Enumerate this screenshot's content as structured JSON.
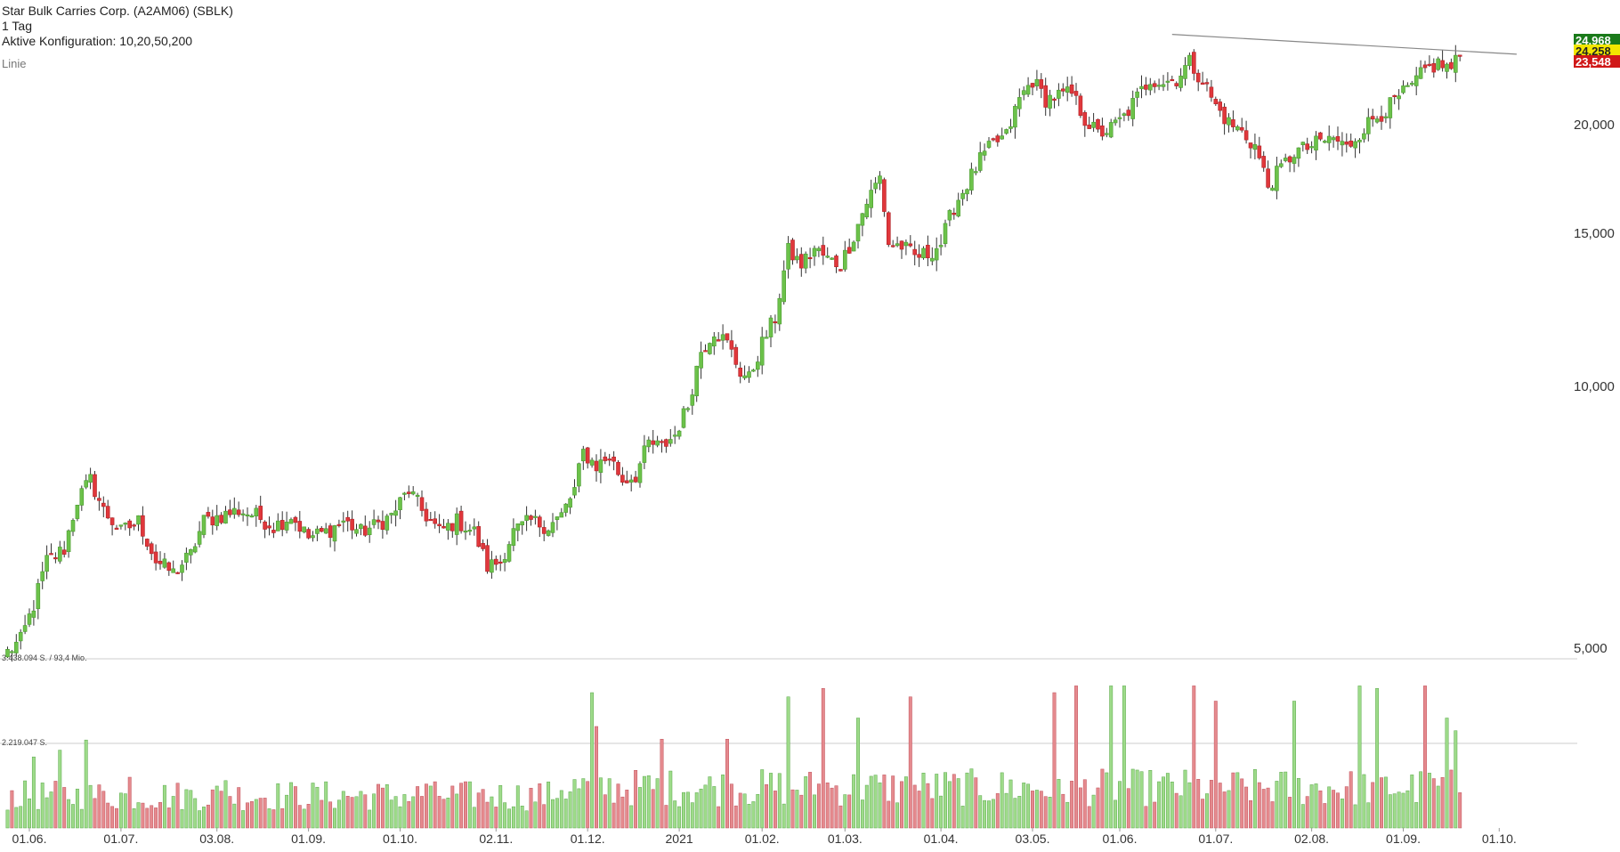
{
  "header": {
    "title": "Star Bulk Carries Corp. (A2AM06) (SBLK)",
    "interval": "1 Tag",
    "config": "Aktive Konfiguration: 10,20,50,200",
    "chart_mode": "Linie"
  },
  "price_badges": [
    {
      "value": "24,968",
      "color": "#1a7a1a",
      "text_color": "#ffffff"
    },
    {
      "value": "24,258",
      "color": "#f2e600",
      "text_color": "#222222"
    },
    {
      "value": "23,548",
      "color": "#d01818",
      "text_color": "#ffffff"
    }
  ],
  "volume_labels": [
    "3.438.094 S. / 93,4 Mio.",
    "2.219.047 S."
  ],
  "colors": {
    "up": "#6cc24a",
    "down": "#e0373b",
    "up_vol": "#9edb8a",
    "down_vol": "#e58a8e",
    "grid": "#cccccc",
    "trendline": "#888888"
  },
  "chart_data": {
    "type": "candlestick",
    "scale": "log",
    "ylim": [
      5.0,
      26.0
    ],
    "yticks": [
      "5,000",
      "10,000",
      "15,000",
      "20,000"
    ],
    "ytick_values": [
      5,
      10,
      15,
      20
    ],
    "xticks": [
      {
        "label": "01.06.",
        "i": 5
      },
      {
        "label": "01.07.",
        "i": 26
      },
      {
        "label": "03.08.",
        "i": 48
      },
      {
        "label": "01.09.",
        "i": 69
      },
      {
        "label": "01.10.",
        "i": 90
      },
      {
        "label": "02.11.",
        "i": 112
      },
      {
        "label": "01.12.",
        "i": 133
      },
      {
        "label": "2021",
        "i": 154
      },
      {
        "label": "01.02.",
        "i": 173
      },
      {
        "label": "01.03.",
        "i": 192
      },
      {
        "label": "01.04.",
        "i": 214
      },
      {
        "label": "03.05.",
        "i": 235
      },
      {
        "label": "01.06.",
        "i": 255
      },
      {
        "label": "01.07.",
        "i": 277
      },
      {
        "label": "02.08.",
        "i": 299
      },
      {
        "label": "01.09.",
        "i": 320
      },
      {
        "label": "01.10.",
        "i": 342
      }
    ],
    "anchors": [
      [
        0,
        4.95
      ],
      [
        3,
        5.1
      ],
      [
        6,
        5.6
      ],
      [
        9,
        6.3
      ],
      [
        13,
        6.5
      ],
      [
        16,
        7.4
      ],
      [
        19,
        7.8
      ],
      [
        22,
        7.2
      ],
      [
        26,
        6.8
      ],
      [
        30,
        7.0
      ],
      [
        34,
        6.3
      ],
      [
        38,
        6.1
      ],
      [
        42,
        6.4
      ],
      [
        45,
        7.0
      ],
      [
        49,
        7.1
      ],
      [
        53,
        7.2
      ],
      [
        57,
        7.1
      ],
      [
        61,
        6.9
      ],
      [
        65,
        7.1
      ],
      [
        69,
        6.7
      ],
      [
        73,
        6.8
      ],
      [
        77,
        7.0
      ],
      [
        81,
        6.8
      ],
      [
        84,
        6.9
      ],
      [
        88,
        7.1
      ],
      [
        92,
        7.6
      ],
      [
        95,
        7.2
      ],
      [
        99,
        6.8
      ],
      [
        103,
        7.0
      ],
      [
        107,
        6.8
      ],
      [
        110,
        6.2
      ],
      [
        113,
        6.3
      ],
      [
        116,
        6.8
      ],
      [
        120,
        7.0
      ],
      [
        124,
        6.9
      ],
      [
        127,
        7.1
      ],
      [
        130,
        7.6
      ],
      [
        132,
        8.4
      ],
      [
        135,
        8.1
      ],
      [
        138,
        8.3
      ],
      [
        141,
        7.8
      ],
      [
        144,
        7.9
      ],
      [
        147,
        8.6
      ],
      [
        150,
        8.5
      ],
      [
        153,
        8.8
      ],
      [
        156,
        9.5
      ],
      [
        159,
        11.0
      ],
      [
        162,
        11.6
      ],
      [
        165,
        11.2
      ],
      [
        168,
        10.4
      ],
      [
        170,
        10.2
      ],
      [
        173,
        11.2
      ],
      [
        176,
        12.0
      ],
      [
        179,
        14.3
      ],
      [
        182,
        13.8
      ],
      [
        185,
        14.4
      ],
      [
        188,
        14.0
      ],
      [
        191,
        13.8
      ],
      [
        194,
        14.9
      ],
      [
        197,
        16.3
      ],
      [
        200,
        17.4
      ],
      [
        202,
        14.6
      ],
      [
        205,
        14.5
      ],
      [
        208,
        14.1
      ],
      [
        211,
        14.2
      ],
      [
        214,
        14.6
      ],
      [
        217,
        16.1
      ],
      [
        220,
        17.1
      ],
      [
        223,
        18.2
      ],
      [
        226,
        19.0
      ],
      [
        229,
        19.4
      ],
      [
        232,
        21.4
      ],
      [
        235,
        22.5
      ],
      [
        238,
        21.4
      ],
      [
        241,
        21.6
      ],
      [
        244,
        21.7
      ],
      [
        247,
        20.3
      ],
      [
        250,
        19.5
      ],
      [
        253,
        19.8
      ],
      [
        256,
        20.4
      ],
      [
        259,
        21.5
      ],
      [
        262,
        22.6
      ],
      [
        265,
        22.4
      ],
      [
        268,
        22.6
      ],
      [
        271,
        23.6
      ],
      [
        274,
        22.5
      ],
      [
        277,
        21.0
      ],
      [
        280,
        20.1
      ],
      [
        283,
        19.6
      ],
      [
        286,
        18.9
      ],
      [
        289,
        17.0
      ],
      [
        292,
        17.8
      ],
      [
        295,
        18.6
      ],
      [
        298,
        18.8
      ],
      [
        301,
        19.1
      ],
      [
        304,
        19.3
      ],
      [
        307,
        18.8
      ],
      [
        310,
        19.6
      ],
      [
        313,
        20.3
      ],
      [
        316,
        20.8
      ],
      [
        319,
        21.5
      ],
      [
        322,
        22.1
      ],
      [
        325,
        23.1
      ],
      [
        328,
        23.5
      ],
      [
        331,
        23.2
      ],
      [
        333,
        24.0
      ]
    ],
    "volume_ref_high": 3438094,
    "volume_ref_mid": 2219047,
    "volume_peaks": [
      [
        6,
        2.1
      ],
      [
        12,
        2.3
      ],
      [
        18,
        2.6
      ],
      [
        28,
        1.5
      ],
      [
        50,
        1.4
      ],
      [
        96,
        1.3
      ],
      [
        134,
        3.2
      ],
      [
        135,
        2.4
      ],
      [
        150,
        2.1
      ],
      [
        165,
        2.1
      ],
      [
        179,
        3.1
      ],
      [
        187,
        3.3
      ],
      [
        195,
        2.6
      ],
      [
        207,
        3.1
      ],
      [
        240,
        3.2
      ],
      [
        245,
        3.6
      ],
      [
        253,
        4.1
      ],
      [
        256,
        3.6
      ],
      [
        272,
        3.8
      ],
      [
        277,
        3.0
      ],
      [
        295,
        3.0
      ],
      [
        310,
        3.7
      ],
      [
        314,
        3.3
      ],
      [
        325,
        3.8
      ],
      [
        330,
        2.6
      ],
      [
        332,
        2.3
      ]
    ],
    "trendline": {
      "from": {
        "i": 267,
        "v": 25.4
      },
      "to": {
        "i": 346,
        "v": 24.1
      }
    }
  }
}
